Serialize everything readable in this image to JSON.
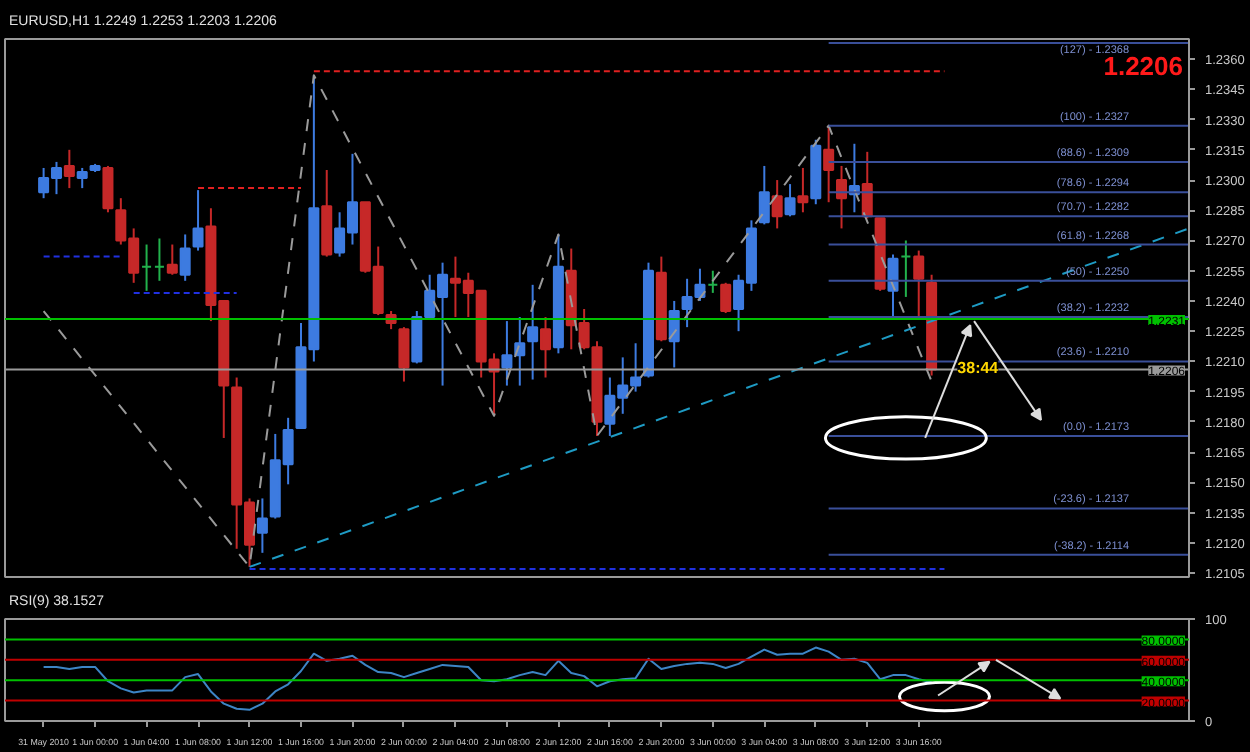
{
  "chart_data": [
    {
      "type": "candlestick",
      "title": "EURUSD,H1  1.2249 1.2253 1.2203 1.2206",
      "x": [
        "2010-05-31T20:00",
        "2010-05-31T21:00",
        "2010-05-31T22:00",
        "2010-05-31T23:00",
        "2010-06-01T00:00",
        "2010-06-01T01:00",
        "2010-06-01T02:00",
        "2010-06-01T03:00",
        "2010-06-01T04:00",
        "2010-06-01T05:00",
        "2010-06-01T06:00",
        "2010-06-01T07:00",
        "2010-06-01T08:00",
        "2010-06-01T09:00",
        "2010-06-01T10:00",
        "2010-06-01T11:00",
        "2010-06-01T12:00",
        "2010-06-01T13:00",
        "2010-06-01T14:00",
        "2010-06-01T15:00",
        "2010-06-01T16:00",
        "2010-06-01T17:00",
        "2010-06-01T18:00",
        "2010-06-01T19:00",
        "2010-06-01T20:00",
        "2010-06-01T21:00",
        "2010-06-01T22:00",
        "2010-06-01T23:00",
        "2010-06-02T00:00",
        "2010-06-02T01:00",
        "2010-06-02T02:00",
        "2010-06-02T03:00",
        "2010-06-02T04:00",
        "2010-06-02T05:00",
        "2010-06-02T06:00",
        "2010-06-02T07:00",
        "2010-06-02T08:00",
        "2010-06-02T09:00",
        "2010-06-02T10:00",
        "2010-06-02T11:00",
        "2010-06-02T12:00",
        "2010-06-02T13:00",
        "2010-06-02T14:00",
        "2010-06-02T15:00",
        "2010-06-02T16:00",
        "2010-06-02T17:00",
        "2010-06-02T18:00",
        "2010-06-02T19:00",
        "2010-06-02T20:00",
        "2010-06-02T21:00",
        "2010-06-02T22:00",
        "2010-06-02T23:00",
        "2010-06-03T00:00",
        "2010-06-03T01:00",
        "2010-06-03T02:00",
        "2010-06-03T03:00",
        "2010-06-03T04:00",
        "2010-06-03T05:00",
        "2010-06-03T06:00",
        "2010-06-03T07:00",
        "2010-06-03T08:00",
        "2010-06-03T09:00",
        "2010-06-03T10:00",
        "2010-06-03T11:00",
        "2010-06-03T12:00",
        "2010-06-03T13:00",
        "2010-06-03T14:00",
        "2010-06-03T15:00",
        "2010-06-03T16:00",
        "2010-06-03T17:00"
      ],
      "ohlc": [
        [
          1.2294,
          1.2306,
          1.2291,
          1.2301
        ],
        [
          1.2301,
          1.2309,
          1.2293,
          1.2306
        ],
        [
          1.2307,
          1.2315,
          1.2296,
          1.2302
        ],
        [
          1.2301,
          1.2306,
          1.2296,
          1.2304
        ],
        [
          1.2305,
          1.2308,
          1.2304,
          1.2307
        ],
        [
          1.2306,
          1.2307,
          1.2284,
          1.2286
        ],
        [
          1.2285,
          1.2291,
          1.2268,
          1.227
        ],
        [
          1.2271,
          1.2276,
          1.2249,
          1.2254
        ],
        [
          1.2257,
          1.2268,
          1.2245,
          1.2257
        ],
        [
          1.2257,
          1.2271,
          1.225,
          1.2257
        ],
        [
          1.2258,
          1.2268,
          1.2253,
          1.2254
        ],
        [
          1.2253,
          1.2273,
          1.225,
          1.2266
        ],
        [
          1.2267,
          1.2295,
          1.2265,
          1.2276
        ],
        [
          1.2277,
          1.2286,
          1.223,
          1.2238
        ],
        [
          1.224,
          1.224,
          1.2172,
          1.2198
        ],
        [
          1.2197,
          1.2202,
          1.2117,
          1.2139
        ],
        [
          1.214,
          1.2142,
          1.2108,
          1.2119
        ],
        [
          1.2125,
          1.2142,
          1.2115,
          1.2132
        ],
        [
          1.2133,
          1.2174,
          1.2132,
          1.2161
        ],
        [
          1.2159,
          1.2182,
          1.2149,
          1.2176
        ],
        [
          1.2177,
          1.2229,
          1.2177,
          1.2217
        ],
        [
          1.2216,
          1.2352,
          1.221,
          1.2286
        ],
        [
          1.2287,
          1.2305,
          1.2262,
          1.2263
        ],
        [
          1.2264,
          1.2284,
          1.2262,
          1.2276
        ],
        [
          1.2274,
          1.2313,
          1.2268,
          1.2289
        ],
        [
          1.2289,
          1.2289,
          1.2254,
          1.2255
        ],
        [
          1.2257,
          1.2267,
          1.2233,
          1.2234
        ],
        [
          1.2233,
          1.2235,
          1.2226,
          1.2229
        ],
        [
          1.2226,
          1.2227,
          1.22,
          1.2207
        ],
        [
          1.221,
          1.2235,
          1.2209,
          1.2232
        ],
        [
          1.2232,
          1.2253,
          1.2231,
          1.2245
        ],
        [
          1.2242,
          1.2259,
          1.2198,
          1.2253
        ],
        [
          1.2251,
          1.2262,
          1.2232,
          1.2249
        ],
        [
          1.225,
          1.2254,
          1.2232,
          1.2244
        ],
        [
          1.2245,
          1.2245,
          1.2202,
          1.221
        ],
        [
          1.2211,
          1.2214,
          1.2183,
          1.2205
        ],
        [
          1.2207,
          1.223,
          1.2198,
          1.2213
        ],
        [
          1.2213,
          1.2232,
          1.2198,
          1.2219
        ],
        [
          1.222,
          1.2248,
          1.2201,
          1.2227
        ],
        [
          1.2226,
          1.2232,
          1.2202,
          1.2216
        ],
        [
          1.2217,
          1.2273,
          1.2214,
          1.2257
        ],
        [
          1.2255,
          1.2266,
          1.2216,
          1.2228
        ],
        [
          1.2229,
          1.2236,
          1.2216,
          1.2217
        ],
        [
          1.2217,
          1.222,
          1.2173,
          1.218
        ],
        [
          1.2179,
          1.2202,
          1.2173,
          1.2193
        ],
        [
          1.2192,
          1.2212,
          1.2184,
          1.2198
        ],
        [
          1.2198,
          1.2219,
          1.2195,
          1.2202
        ],
        [
          1.2203,
          1.2259,
          1.2202,
          1.2255
        ],
        [
          1.2254,
          1.2262,
          1.222,
          1.2221
        ],
        [
          1.222,
          1.224,
          1.2207,
          1.2235
        ],
        [
          1.2236,
          1.2251,
          1.2227,
          1.2242
        ],
        [
          1.2242,
          1.2256,
          1.224,
          1.2248
        ],
        [
          1.2248,
          1.2255,
          1.2244,
          1.2248
        ],
        [
          1.2248,
          1.2249,
          1.2234,
          1.2235
        ],
        [
          1.2236,
          1.2253,
          1.2225,
          1.225
        ],
        [
          1.2249,
          1.228,
          1.2245,
          1.2276
        ],
        [
          1.2279,
          1.2307,
          1.2278,
          1.2294
        ],
        [
          1.2292,
          1.23,
          1.2276,
          1.2282
        ],
        [
          1.2283,
          1.2298,
          1.2282,
          1.2291
        ],
        [
          1.2292,
          1.2306,
          1.2284,
          1.2289
        ],
        [
          1.2291,
          1.232,
          1.2288,
          1.2317
        ],
        [
          1.2315,
          1.2327,
          1.2289,
          1.2305
        ],
        [
          1.23,
          1.2307,
          1.2276,
          1.2291
        ],
        [
          1.2293,
          1.2318,
          1.2284,
          1.2297
        ],
        [
          1.2298,
          1.2314,
          1.2281,
          1.2282
        ],
        [
          1.2281,
          1.2281,
          1.2245,
          1.2246
        ],
        [
          1.2245,
          1.2263,
          1.2231,
          1.2261
        ],
        [
          1.2262,
          1.227,
          1.2242,
          1.2262
        ],
        [
          1.2262,
          1.2265,
          1.2231,
          1.2251
        ],
        [
          1.2249,
          1.2253,
          1.2203,
          1.2206
        ]
      ],
      "colors": [
        "#3d7be0",
        "#3d7be0",
        "#c62828",
        "#3d7be0",
        "#3d7be0",
        "#c62828",
        "#c62828",
        "#c62828",
        "#22b14c",
        "#22b14c",
        "#c62828",
        "#3d7be0",
        "#3d7be0",
        "#c62828",
        "#c62828",
        "#c62828",
        "#c62828",
        "#3d7be0",
        "#3d7be0",
        "#3d7be0",
        "#3d7be0",
        "#3d7be0",
        "#c62828",
        "#3d7be0",
        "#3d7be0",
        "#c62828",
        "#c62828",
        "#c62828",
        "#c62828",
        "#3d7be0",
        "#3d7be0",
        "#3d7be0",
        "#c62828",
        "#c62828",
        "#c62828",
        "#c62828",
        "#3d7be0",
        "#3d7be0",
        "#3d7be0",
        "#c62828",
        "#3d7be0",
        "#c62828",
        "#c62828",
        "#c62828",
        "#3d7be0",
        "#3d7be0",
        "#3d7be0",
        "#3d7be0",
        "#c62828",
        "#3d7be0",
        "#3d7be0",
        "#3d7be0",
        "#22b14c",
        "#c62828",
        "#3d7be0",
        "#3d7be0",
        "#3d7be0",
        "#c62828",
        "#3d7be0",
        "#c62828",
        "#3d7be0",
        "#c62828",
        "#c62828",
        "#3d7be0",
        "#c62828",
        "#c62828",
        "#3d7be0",
        "#22b14c",
        "#c62828",
        "#c62828"
      ],
      "series": [
        {
          "type": "line",
          "color": "#9a9a9a",
          "line_style": "dashed",
          "x": [
            "2010-05-31T20:00",
            "2010-06-01T12:00",
            "2010-06-01T17:00",
            "2010-06-02T07:00",
            "2010-06-02T12:00",
            "2010-06-02T15:00",
            "2010-06-03T09:00",
            "2010-06-03T17:00"
          ],
          "values": [
            1.2235,
            1.2108,
            1.2352,
            1.2183,
            1.2273,
            1.2173,
            1.2327,
            1.22
          ]
        },
        {
          "type": "line",
          "color": "#1e9bc4",
          "line_style": "dashed",
          "x": [
            "2010-06-01T12:00",
            "2010-06-04T13:00"
          ],
          "values": [
            1.2108,
            1.2276
          ]
        },
        {
          "type": "line",
          "color": "#e02020",
          "line_style": "dotted",
          "x": [
            "2010-06-01T17:00",
            "2010-06-03T18:00"
          ],
          "values": [
            1.2354,
            1.2354
          ]
        },
        {
          "type": "line",
          "color": "#e02020",
          "line_style": "dotted",
          "x": [
            "2010-06-01T08:00",
            "2010-06-01T16:00"
          ],
          "values": [
            1.2296,
            1.2296
          ]
        },
        {
          "type": "line",
          "color": "#2030e0",
          "line_style": "dotted",
          "x": [
            "2010-05-31T20:00",
            "2010-06-01T02:00"
          ],
          "values": [
            1.2262,
            1.2262
          ]
        },
        {
          "type": "line",
          "color": "#2030e0",
          "line_style": "dotted",
          "x": [
            "2010-06-01T03:00",
            "2010-06-01T11:00"
          ],
          "values": [
            1.2244,
            1.2244
          ]
        },
        {
          "type": "line",
          "color": "#2030e0",
          "line_style": "dotted",
          "x": [
            "2010-06-01T12:00",
            "2010-06-03T18:00"
          ],
          "values": [
            1.2107,
            1.2107
          ]
        },
        {
          "type": "line",
          "name": "(127) - 1.2368",
          "color": "#3a4f9a",
          "x": [
            "2010-06-03T09:00",
            "2010-06-04T13:00"
          ],
          "values": [
            1.2368,
            1.2368
          ]
        },
        {
          "type": "line",
          "name": "(100) - 1.2327",
          "color": "#3a4f9a",
          "x": [
            "2010-06-03T09:00",
            "2010-06-04T13:00"
          ],
          "values": [
            1.2327,
            1.2327
          ]
        },
        {
          "type": "line",
          "name": "(88.6) - 1.2309",
          "color": "#3a4f9a",
          "x": [
            "2010-06-03T09:00",
            "2010-06-04T13:00"
          ],
          "values": [
            1.2309,
            1.2309
          ]
        },
        {
          "type": "line",
          "name": "(78.6) - 1.2294",
          "color": "#3a4f9a",
          "x": [
            "2010-06-03T09:00",
            "2010-06-04T13:00"
          ],
          "values": [
            1.2294,
            1.2294
          ]
        },
        {
          "type": "line",
          "name": "(70.7) - 1.2282",
          "color": "#3a4f9a",
          "x": [
            "2010-06-03T09:00",
            "2010-06-04T13:00"
          ],
          "values": [
            1.2282,
            1.2282
          ]
        },
        {
          "type": "line",
          "name": "(61.8) - 1.2268",
          "color": "#3a4f9a",
          "x": [
            "2010-06-03T09:00",
            "2010-06-04T13:00"
          ],
          "values": [
            1.2268,
            1.2268
          ]
        },
        {
          "type": "line",
          "name": "(50) - 1.2250",
          "color": "#3a4f9a",
          "x": [
            "2010-06-03T09:00",
            "2010-06-04T13:00"
          ],
          "values": [
            1.225,
            1.225
          ]
        },
        {
          "type": "line",
          "name": "(38.2) - 1.2232",
          "color": "#3a4f9a",
          "x": [
            "2010-06-03T09:00",
            "2010-06-04T13:00"
          ],
          "values": [
            1.2232,
            1.2232
          ]
        },
        {
          "type": "line",
          "name": "(23.6) - 1.2210",
          "color": "#3a4f9a",
          "x": [
            "2010-06-03T09:00",
            "2010-06-04T13:00"
          ],
          "values": [
            1.221,
            1.221
          ]
        },
        {
          "type": "line",
          "name": "(0.0) - 1.2173",
          "color": "#3a4f9a",
          "x": [
            "2010-06-03T09:00",
            "2010-06-04T13:00"
          ],
          "values": [
            1.2173,
            1.2173
          ]
        },
        {
          "type": "line",
          "name": "(-23.6) - 1.2137",
          "color": "#3a4f9a",
          "x": [
            "2010-06-03T09:00",
            "2010-06-04T13:00"
          ],
          "values": [
            1.2137,
            1.2137
          ]
        },
        {
          "type": "line",
          "name": "(-38.2) - 1.2114",
          "color": "#3a4f9a",
          "x": [
            "2010-06-03T09:00",
            "2010-06-04T13:00"
          ],
          "values": [
            1.2114,
            1.2114
          ]
        }
      ],
      "ref_lines": [
        {
          "axis": "y",
          "value": 1.2231,
          "label": "1.2231",
          "color": "#00c000"
        },
        {
          "axis": "y",
          "value": 1.2206,
          "label": "1.2206",
          "color": "#9a9a9a"
        }
      ],
      "annotations": [
        "1.2206",
        {
          "text": "38:44",
          "x": "2010-06-03T19:00",
          "y": 1.2206
        }
      ],
      "xlim": [
        "2010-05-31T17:00",
        "2010-06-04T13:00"
      ],
      "ylim": [
        1.2103,
        1.237
      ],
      "yticks": [
        {
          "value": 1.236,
          "label": "1.2360"
        },
        1.2345,
        {
          "value": 1.233,
          "label": "1.2330"
        },
        1.2315,
        {
          "value": 1.23,
          "label": "1.2300"
        },
        1.2285,
        {
          "value": 1.227,
          "label": "1.2270"
        },
        1.2255,
        {
          "value": 1.224,
          "label": "1.2240"
        },
        1.2225,
        {
          "value": 1.221,
          "label": "1.2210"
        },
        1.2195,
        {
          "value": 1.218,
          "label": "1.2180"
        },
        1.2165,
        {
          "value": 1.215,
          "label": "1.2150"
        },
        1.2135,
        {
          "value": 1.212,
          "label": "1.2120"
        },
        1.2105
      ],
      "grid": false,
      "tick_labels": "y"
    },
    {
      "type": "line",
      "title": "RSI(9) 38.1527",
      "color": "#3d85c6",
      "x": [
        "2010-05-31T20:00",
        "2010-05-31T21:00",
        "2010-05-31T22:00",
        "2010-05-31T23:00",
        "2010-06-01T00:00",
        "2010-06-01T01:00",
        "2010-06-01T02:00",
        "2010-06-01T03:00",
        "2010-06-01T04:00",
        "2010-06-01T05:00",
        "2010-06-01T06:00",
        "2010-06-01T07:00",
        "2010-06-01T08:00",
        "2010-06-01T09:00",
        "2010-06-01T10:00",
        "2010-06-01T11:00",
        "2010-06-01T12:00",
        "2010-06-01T13:00",
        "2010-06-01T14:00",
        "2010-06-01T15:00",
        "2010-06-01T16:00",
        "2010-06-01T17:00",
        "2010-06-01T18:00",
        "2010-06-01T19:00",
        "2010-06-01T20:00",
        "2010-06-01T21:00",
        "2010-06-01T22:00",
        "2010-06-01T23:00",
        "2010-06-02T00:00",
        "2010-06-02T01:00",
        "2010-06-02T02:00",
        "2010-06-02T03:00",
        "2010-06-02T04:00",
        "2010-06-02T05:00",
        "2010-06-02T06:00",
        "2010-06-02T07:00",
        "2010-06-02T08:00",
        "2010-06-02T09:00",
        "2010-06-02T10:00",
        "2010-06-02T11:00",
        "2010-06-02T12:00",
        "2010-06-02T13:00",
        "2010-06-02T14:00",
        "2010-06-02T15:00",
        "2010-06-02T16:00",
        "2010-06-02T17:00",
        "2010-06-02T18:00",
        "2010-06-02T19:00",
        "2010-06-02T20:00",
        "2010-06-02T21:00",
        "2010-06-02T22:00",
        "2010-06-02T23:00",
        "2010-06-03T00:00",
        "2010-06-03T01:00",
        "2010-06-03T02:00",
        "2010-06-03T03:00",
        "2010-06-03T04:00",
        "2010-06-03T05:00",
        "2010-06-03T06:00",
        "2010-06-03T07:00",
        "2010-06-03T08:00",
        "2010-06-03T09:00",
        "2010-06-03T10:00",
        "2010-06-03T11:00",
        "2010-06-03T12:00",
        "2010-06-03T13:00",
        "2010-06-03T14:00",
        "2010-06-03T15:00",
        "2010-06-03T16:00",
        "2010-06-03T17:00"
      ],
      "values": [
        53,
        53,
        51,
        53,
        53,
        39,
        32,
        28,
        30,
        30,
        30,
        43,
        46,
        29,
        17,
        12,
        11,
        17,
        29,
        36,
        49,
        66,
        59,
        61,
        64,
        55,
        48,
        47,
        43,
        47,
        51,
        55,
        54,
        53,
        40,
        39,
        41,
        45,
        48,
        45,
        59,
        47,
        44,
        34,
        39,
        41,
        42,
        61,
        51,
        54,
        56,
        57,
        56,
        52,
        56,
        63,
        70,
        65,
        66,
        66,
        72,
        68,
        60,
        61,
        57,
        41,
        45,
        45,
        41,
        38
      ],
      "ref_lines": [
        {
          "axis": "y",
          "value": 80,
          "label": "80.0000",
          "color": "#00c000"
        },
        {
          "axis": "y",
          "value": 60,
          "label": "60.0000",
          "color": "#c00000"
        },
        {
          "axis": "y",
          "value": 40,
          "label": "40.0000",
          "color": "#00c000"
        },
        {
          "axis": "y",
          "value": 20,
          "label": "20.0000",
          "color": "#c00000"
        }
      ],
      "xlim": [
        "2010-05-31T17:00",
        "2010-06-04T13:00"
      ],
      "ylim": [
        0,
        100
      ],
      "yticks": [
        0,
        100
      ],
      "xticks": [
        {
          "value": "2010-05-31T20:00",
          "label": "31 May 2010"
        },
        {
          "value": "2010-06-01T00:00",
          "label": "1 Jun 00:00"
        },
        {
          "value": "2010-06-01T04:00",
          "label": "1 Jun 04:00"
        },
        {
          "value": "2010-06-01T08:00",
          "label": "1 Jun 08:00"
        },
        {
          "value": "2010-06-01T12:00",
          "label": "1 Jun 12:00"
        },
        {
          "value": "2010-06-01T16:00",
          "label": "1 Jun 16:00"
        },
        {
          "value": "2010-06-01T20:00",
          "label": "1 Jun 20:00"
        },
        {
          "value": "2010-06-02T00:00",
          "label": "2 Jun 00:00"
        },
        {
          "value": "2010-06-02T04:00",
          "label": "2 Jun 04:00"
        },
        {
          "value": "2010-06-02T08:00",
          "label": "2 Jun 08:00"
        },
        {
          "value": "2010-06-02T12:00",
          "label": "2 Jun 12:00"
        },
        {
          "value": "2010-06-02T16:00",
          "label": "2 Jun 16:00"
        },
        {
          "value": "2010-06-02T20:00",
          "label": "2 Jun 20:00"
        },
        {
          "value": "2010-06-03T00:00",
          "label": "3 Jun 00:00"
        },
        {
          "value": "2010-06-03T04:00",
          "label": "3 Jun 04:00"
        },
        {
          "value": "2010-06-03T08:00",
          "label": "3 Jun 08:00"
        },
        {
          "value": "2010-06-03T12:00",
          "label": "3 Jun 12:00"
        },
        {
          "value": "2010-06-03T16:00",
          "label": "3 Jun 16:00"
        }
      ],
      "grid": false
    }
  ]
}
